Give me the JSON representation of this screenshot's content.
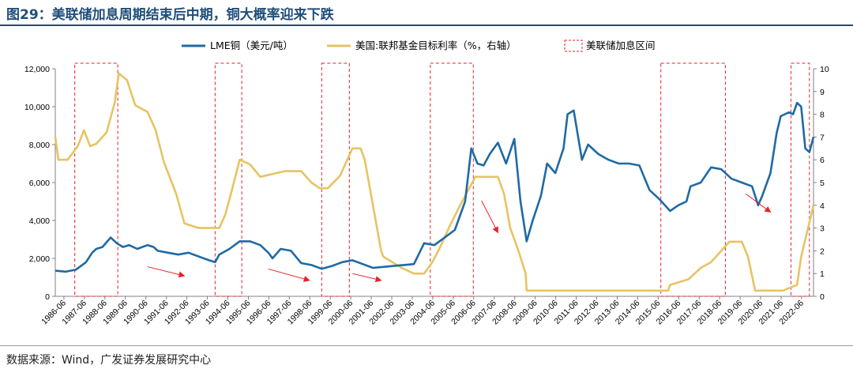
{
  "header": {
    "title": "图29：美联储加息周期结束后中期，铜大概率迎来下跌"
  },
  "footer": {
    "source": "数据来源：Wind，广发证券发展研究中心"
  },
  "chart_data": {
    "type": "line",
    "title": "图29：美联储加息周期结束后中期，铜大概率迎来下跌",
    "legend": [
      "LME铜（美元/吨）",
      "美国:联邦基金目标利率（%，右轴）",
      "美联储加息区间"
    ],
    "colors": {
      "copper": "#1f6aa5",
      "rate": "#e6c462",
      "hike": "#e8212a"
    },
    "x_ticks": [
      "1986-06",
      "1987-06",
      "1988-06",
      "1989-06",
      "1990-06",
      "1991-06",
      "1992-06",
      "1993-06",
      "1994-06",
      "1995-06",
      "1996-06",
      "1997-06",
      "1998-06",
      "1999-06",
      "2000-06",
      "2001-06",
      "2002-06",
      "2003-06",
      "2004-06",
      "2005-06",
      "2006-06",
      "2007-06",
      "2008-06",
      "2009-06",
      "2010-06",
      "2011-06",
      "2012-06",
      "2013-06",
      "2014-06",
      "2015-06",
      "2016-06",
      "2017-06",
      "2018-06",
      "2019-06",
      "2020-06",
      "2021-06",
      "2022-06"
    ],
    "y_left": {
      "min": 0,
      "max": 12000,
      "ticks": [
        "0",
        "2,000",
        "4,000",
        "6,000",
        "8,000",
        "10,000",
        "12,000"
      ]
    },
    "y_right": {
      "min": 0,
      "max": 10,
      "ticks": [
        "0",
        "1",
        "2",
        "3",
        "4",
        "5",
        "6",
        "7",
        "8",
        "9",
        "10"
      ]
    },
    "series": [
      {
        "name": "LME铜（美元/吨）",
        "axis": "left",
        "x": [
          1986.0,
          1986.5,
          1987.0,
          1987.5,
          1987.8,
          1988.0,
          1988.3,
          1988.7,
          1989.0,
          1989.3,
          1989.6,
          1990.0,
          1990.5,
          1990.8,
          1991.0,
          1991.5,
          1992.0,
          1992.5,
          1993.0,
          1993.5,
          1993.8,
          1994.0,
          1994.5,
          1995.0,
          1995.5,
          1996.0,
          1996.4,
          1996.6,
          1997.0,
          1997.5,
          1998.0,
          1998.5,
          1999.0,
          1999.5,
          2000.0,
          2000.5,
          2001.0,
          2001.5,
          2002.0,
          2002.5,
          2003.0,
          2003.5,
          2004.0,
          2004.5,
          2005.0,
          2005.5,
          2006.0,
          2006.3,
          2006.6,
          2006.9,
          2007.2,
          2007.6,
          2008.0,
          2008.4,
          2008.7,
          2009.0,
          2009.3,
          2009.7,
          2010.0,
          2010.4,
          2010.8,
          2011.0,
          2011.3,
          2011.7,
          2012.0,
          2012.5,
          2013.0,
          2013.5,
          2014.0,
          2014.5,
          2015.0,
          2015.5,
          2016.0,
          2016.4,
          2016.8,
          2017.0,
          2017.5,
          2018.0,
          2018.5,
          2019.0,
          2019.5,
          2020.0,
          2020.3,
          2020.5,
          2020.9,
          2021.2,
          2021.4,
          2021.8,
          2022.0,
          2022.2,
          2022.4,
          2022.6,
          2022.8,
          2023.0
        ],
        "values": [
          1350,
          1300,
          1400,
          1800,
          2300,
          2500,
          2600,
          3100,
          2800,
          2600,
          2700,
          2500,
          2700,
          2600,
          2400,
          2300,
          2200,
          2300,
          2100,
          1900,
          1800,
          2200,
          2500,
          2900,
          2900,
          2700,
          2300,
          2000,
          2500,
          2400,
          1750,
          1650,
          1450,
          1600,
          1800,
          1900,
          1700,
          1500,
          1550,
          1600,
          1650,
          1700,
          2800,
          2700,
          3100,
          3500,
          5000,
          7800,
          7000,
          6900,
          7500,
          8100,
          7000,
          8300,
          5000,
          2900,
          4000,
          5300,
          7000,
          6500,
          7800,
          9600,
          9800,
          7200,
          8000,
          7500,
          7200,
          7000,
          7000,
          6900,
          5600,
          5100,
          4500,
          4800,
          5000,
          5800,
          6000,
          6800,
          6700,
          6200,
          6000,
          5800,
          4800,
          5300,
          6500,
          8600,
          9500,
          9700,
          9600,
          10200,
          10000,
          7800,
          7600,
          8400
        ]
      },
      {
        "name": "美国:联邦基金目标利率（%，右轴）",
        "axis": "right",
        "x": [
          1986.0,
          1986.15,
          1986.6,
          1987.1,
          1987.4,
          1987.7,
          1988.0,
          1988.5,
          1988.9,
          1989.1,
          1989.5,
          1989.9,
          1990.5,
          1990.9,
          1991.3,
          1991.9,
          1992.3,
          1993.0,
          1993.8,
          1994.0,
          1994.3,
          1994.6,
          1995.0,
          1995.5,
          1996.0,
          1997.2,
          1998.0,
          1998.5,
          1998.9,
          1999.3,
          1999.9,
          2000.5,
          2000.9,
          2001.1,
          2001.5,
          2001.9,
          2002.0,
          2002.9,
          2003.5,
          2004.0,
          2004.4,
          2004.8,
          2005.2,
          2005.7,
          2006.2,
          2006.5,
          2007.6,
          2007.9,
          2008.2,
          2008.6,
          2008.95,
          2009.0,
          2015.9,
          2016.0,
          2016.9,
          2017.5,
          2018.0,
          2018.5,
          2018.9,
          2019.5,
          2019.8,
          2020.15,
          2021.5,
          2022.2,
          2022.4,
          2022.6,
          2022.8,
          2023.0
        ],
        "values": [
          7.0,
          6.0,
          6.0,
          6.6,
          7.3,
          6.6,
          6.7,
          7.2,
          8.5,
          9.8,
          9.5,
          8.4,
          8.1,
          7.3,
          5.9,
          4.5,
          3.2,
          3.0,
          3.0,
          3.0,
          3.6,
          4.6,
          6.0,
          5.8,
          5.25,
          5.5,
          5.5,
          5.0,
          4.75,
          4.75,
          5.3,
          6.5,
          6.5,
          6.0,
          4.0,
          2.0,
          1.75,
          1.25,
          1.0,
          1.0,
          1.5,
          2.2,
          3.0,
          3.9,
          4.75,
          5.25,
          5.25,
          4.5,
          3.0,
          2.0,
          1.0,
          0.25,
          0.25,
          0.5,
          0.75,
          1.25,
          1.5,
          2.0,
          2.4,
          2.4,
          1.75,
          0.25,
          0.25,
          0.5,
          1.75,
          2.5,
          3.25,
          4.0
        ]
      }
    ],
    "hike_periods": [
      [
        1986.95,
        1989.05
      ],
      [
        1993.8,
        1995.1
      ],
      [
        1999.0,
        2000.35
      ],
      [
        2004.3,
        2006.4
      ],
      [
        2015.55,
        2018.7
      ],
      [
        2021.9,
        2022.8
      ]
    ],
    "decline_arrows": [
      [
        1990.5,
        1.3,
        1992.3,
        0.9
      ],
      [
        1996.4,
        1.2,
        1998.4,
        0.7
      ],
      [
        2000.5,
        1.0,
        2001.9,
        0.7
      ],
      [
        2006.8,
        4.2,
        2007.6,
        2.8
      ],
      [
        2019.7,
        4.5,
        2020.9,
        3.7
      ]
    ]
  }
}
